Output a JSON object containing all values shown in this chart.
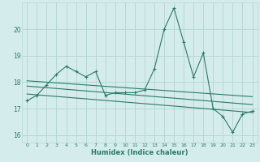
{
  "x": [
    0,
    1,
    2,
    3,
    4,
    5,
    6,
    7,
    8,
    9,
    10,
    11,
    12,
    13,
    14,
    15,
    16,
    17,
    18,
    19,
    20,
    21,
    22,
    23
  ],
  "y_main": [
    17.3,
    17.5,
    17.9,
    18.3,
    18.6,
    18.4,
    18.2,
    18.4,
    17.5,
    17.6,
    17.6,
    17.6,
    17.7,
    18.5,
    20.0,
    20.8,
    19.5,
    18.2,
    19.1,
    17.0,
    16.7,
    16.1,
    16.8,
    16.9
  ],
  "trend1_x": [
    0,
    23
  ],
  "trend1_y": [
    17.85,
    17.15
  ],
  "trend2_x": [
    0,
    23
  ],
  "trend2_y": [
    18.05,
    17.45
  ],
  "trend3_x": [
    0,
    23
  ],
  "trend3_y": [
    17.55,
    16.85
  ],
  "xlabel": "Humidex (Indice chaleur)",
  "ylim": [
    15.7,
    21.0
  ],
  "xlim": [
    -0.5,
    23.5
  ],
  "yticks": [
    16,
    17,
    18,
    19,
    20
  ],
  "line_color": "#2a7a6a",
  "bg_color": "#d4ecec",
  "grid_color": "#b8d8d8",
  "tick_color": "#2a7a6a"
}
